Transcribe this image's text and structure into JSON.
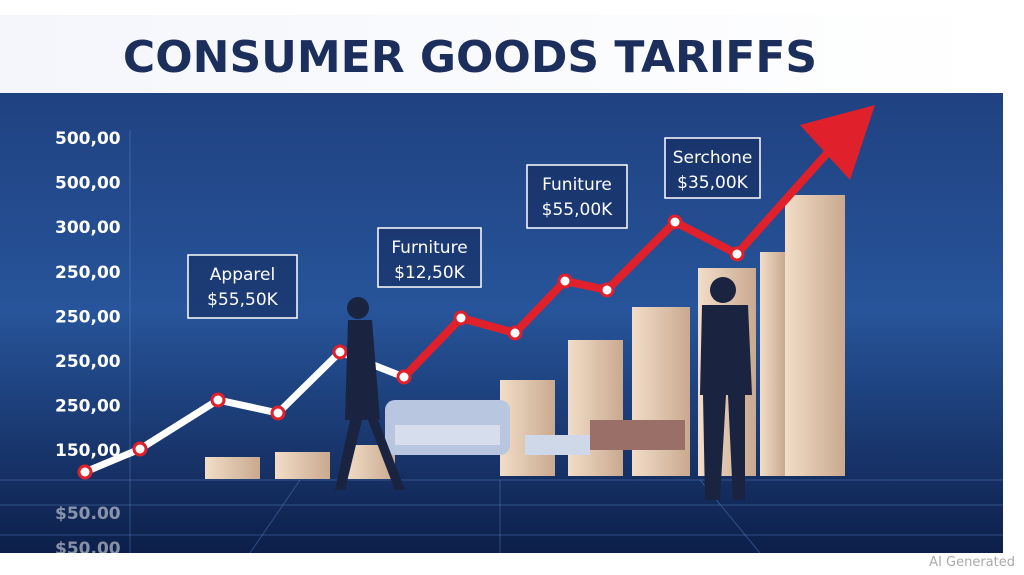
{
  "header": {
    "title": "CONSUMER GOODS TARIFFS"
  },
  "axis_labels": [
    "500,00",
    "500,00",
    "300,00",
    "250,00",
    "250,00",
    "250,00",
    "250,00",
    "150,00"
  ],
  "reflected_labels": [
    "$50.00",
    "$50.00"
  ],
  "callouts": [
    {
      "label": "Apparel",
      "amount": "$55,50K"
    },
    {
      "label": "Furniture",
      "amount": "$12,50K"
    },
    {
      "label": "Funiture",
      "amount": "$55,00K"
    },
    {
      "label": "Serchone",
      "amount": "$35,00K"
    }
  ],
  "watermark": "AI Generated"
}
